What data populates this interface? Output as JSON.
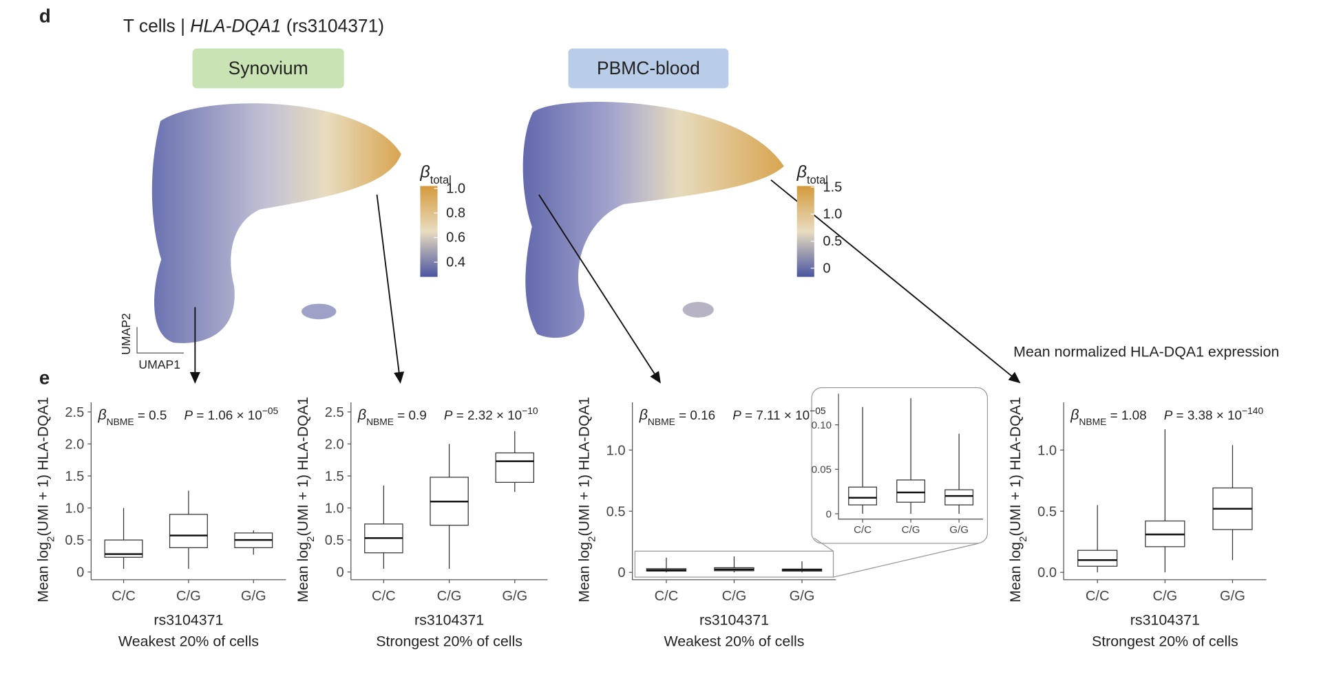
{
  "figure": {
    "panel_d": "d",
    "panel_e": "e",
    "title_prefix": "T cells | ",
    "title_gene": "HLA-DQA1",
    "title_snp": " (rs3104371)",
    "umap_x": "UMAP1",
    "umap_y": "UMAP2",
    "expression_note": "Mean normalized HLA-DQA1 expression",
    "umaps": [
      {
        "label": "Synovium",
        "colorbar": {
          "title": "β",
          "title_sub": "total",
          "lim": [
            0.28,
            1.02
          ],
          "ticks": [
            0.4,
            0.6,
            0.8,
            {
              "value": 1,
              "label": "1.0"
            }
          ]
        }
      },
      {
        "label": "PBMC-blood",
        "colorbar": {
          "title": "β",
          "title_sub": "total",
          "lim": [
            -0.16,
            1.52
          ],
          "ticks": [
            0,
            0.5,
            {
              "value": 1,
              "label": "1.0"
            },
            1.5
          ]
        }
      }
    ]
  },
  "chart_data": [
    {
      "type": "box",
      "categories": [
        "C/C",
        "C/G",
        "G/G"
      ],
      "xlabel": "rs3104371",
      "subtitle": "Weakest 20% of cells",
      "ylabel": "Mean log",
      "ylabel_sub": "2",
      "ylabel_rest": "(UMI + 1) HLA-DQA1",
      "annotation": {
        "beta": "β",
        "beta_sub": "NBME",
        "beta_value": " = 0.5",
        "p": "P",
        "p_value": " = 1.06 × 10",
        "p_exp": "−05"
      },
      "ylim": [
        -0.12,
        2.65
      ],
      "yticks": [
        0,
        0.5,
        {
          "value": 1,
          "label": "1.0"
        },
        1.5,
        {
          "value": 2,
          "label": "2.0"
        },
        2.5
      ],
      "boxes": [
        {
          "q1": 0.23,
          "median": 0.28,
          "q3": 0.5,
          "whislo": 0.05,
          "whishi": 1.0
        },
        {
          "q1": 0.38,
          "median": 0.57,
          "q3": 0.9,
          "whislo": 0.05,
          "whishi": 1.27
        },
        {
          "q1": 0.38,
          "median": 0.5,
          "q3": 0.61,
          "whislo": 0.27,
          "whishi": 0.65
        }
      ]
    },
    {
      "type": "box",
      "categories": [
        "C/C",
        "C/G",
        "G/G"
      ],
      "xlabel": "rs3104371",
      "subtitle": "Strongest 20% of cells",
      "ylabel": "Mean log",
      "ylabel_sub": "2",
      "ylabel_rest": "(UMI + 1) HLA-DQA1",
      "annotation": {
        "beta": "β",
        "beta_sub": "NBME",
        "beta_value": " = 0.9",
        "p": "P",
        "p_value": " = 2.32 × 10",
        "p_exp": "−10"
      },
      "ylim": [
        -0.12,
        2.65
      ],
      "yticks": [
        0,
        0.5,
        {
          "value": 1,
          "label": "1.0"
        },
        1.5,
        {
          "value": 2,
          "label": "2.0"
        },
        2.5
      ],
      "boxes": [
        {
          "q1": 0.3,
          "median": 0.53,
          "q3": 0.75,
          "whislo": 0.05,
          "whishi": 1.35
        },
        {
          "q1": 0.73,
          "median": 1.1,
          "q3": 1.48,
          "whislo": 0.05,
          "whishi": 2.0
        },
        {
          "q1": 1.4,
          "median": 1.73,
          "q3": 1.86,
          "whislo": 1.25,
          "whishi": 2.2
        }
      ]
    },
    {
      "type": "box",
      "categories": [
        "C/C",
        "C/G",
        "G/G"
      ],
      "xlabel": "rs3104371",
      "subtitle": "Weakest 20% of cells",
      "ylabel": "Mean log",
      "ylabel_sub": "2",
      "ylabel_rest": "(UMI + 1) HLA-DQA1",
      "annotation": {
        "beta": "β",
        "beta_sub": "NBME",
        "beta_value": " = 0.16",
        "p": "P",
        "p_value": " = 7.11 × 10",
        "p_exp": "−05"
      },
      "ylim": [
        -0.06,
        1.39
      ],
      "yticks": [
        0,
        0.5,
        {
          "value": 1,
          "label": "1.0"
        }
      ],
      "boxes": [
        {
          "q1": 0.01,
          "median": 0.018,
          "q3": 0.03,
          "whislo": 0,
          "whishi": 0.12
        },
        {
          "q1": 0.013,
          "median": 0.024,
          "q3": 0.038,
          "whislo": 0,
          "whishi": 0.13
        },
        {
          "q1": 0.01,
          "median": 0.02,
          "q3": 0.027,
          "whislo": 0,
          "whishi": 0.09
        }
      ]
    },
    {
      "type": "box",
      "categories": [
        "C/C",
        "C/G",
        "G/G"
      ],
      "ylim": [
        -0.006,
        0.135
      ],
      "yticks": [
        0,
        0.05,
        {
          "value": 0.1,
          "label": "0.10"
        }
      ],
      "boxes": [
        {
          "q1": 0.01,
          "median": 0.018,
          "q3": 0.03,
          "whislo": 0,
          "whishi": 0.12
        },
        {
          "q1": 0.013,
          "median": 0.024,
          "q3": 0.038,
          "whislo": 0,
          "whishi": 0.13
        },
        {
          "q1": 0.01,
          "median": 0.02,
          "q3": 0.027,
          "whislo": 0,
          "whishi": 0.09
        }
      ]
    },
    {
      "type": "box",
      "categories": [
        "C/C",
        "C/G",
        "G/G"
      ],
      "xlabel": "rs3104371",
      "subtitle": "Strongest 20% of cells",
      "ylabel": "Mean log",
      "ylabel_sub": "2",
      "ylabel_rest": "(UMI + 1) HLA-DQA1",
      "annotation": {
        "beta": "β",
        "beta_sub": "NBME",
        "beta_value": " = 1.08",
        "p": "P",
        "p_value": " = 3.38 × 10",
        "p_exp": "−140"
      },
      "ylim": [
        -0.06,
        1.39
      ],
      "yticks": [
        {
          "value": 0,
          "label": "0.0"
        },
        0.5,
        {
          "value": 1,
          "label": "1.0"
        }
      ],
      "boxes": [
        {
          "q1": 0.05,
          "median": 0.1,
          "q3": 0.18,
          "whislo": 0,
          "whishi": 0.55
        },
        {
          "q1": 0.21,
          "median": 0.31,
          "q3": 0.42,
          "whislo": 0,
          "whishi": 1.17
        },
        {
          "q1": 0.35,
          "median": 0.52,
          "q3": 0.69,
          "whislo": 0.1,
          "whishi": 1.04
        }
      ]
    }
  ]
}
